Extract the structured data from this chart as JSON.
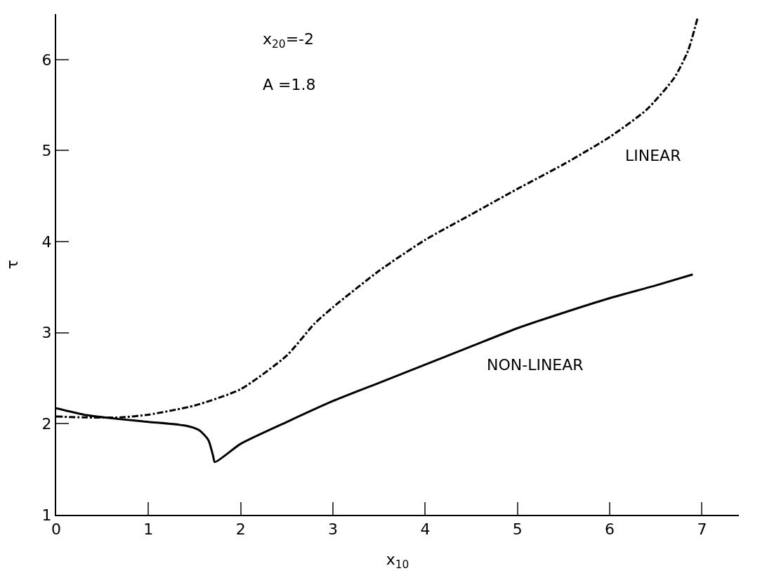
{
  "chart_data": {
    "type": "line",
    "xlabel": "x$_{10}$",
    "ylabel": "τ",
    "xlim": [
      0,
      7.4
    ],
    "xticks": [
      0,
      1,
      2,
      3,
      4,
      5,
      6,
      7
    ],
    "ylim": [
      1,
      6.5
    ],
    "yticks": [
      1,
      2,
      3,
      4,
      5,
      6
    ],
    "grid": false,
    "legend": false,
    "marker": "none",
    "series": [
      {
        "name": "LINEAR",
        "color": "#000000",
        "line_style": "dashed",
        "x": [
          0,
          0.3,
          0.7,
          1.0,
          1.5,
          2.0,
          2.5,
          2.8,
          3.0,
          3.5,
          4.0,
          4.5,
          5.0,
          5.5,
          6.0,
          6.4,
          6.7,
          6.85,
          6.95
        ],
        "values": [
          2.08,
          2.07,
          2.07,
          2.1,
          2.2,
          2.38,
          2.75,
          3.1,
          3.28,
          3.68,
          4.02,
          4.3,
          4.58,
          4.85,
          5.15,
          5.45,
          5.8,
          6.1,
          6.45
        ]
      },
      {
        "name": "NON-LINEAR",
        "color": "#000000",
        "line_style": "solid",
        "x": [
          0,
          0.3,
          0.7,
          1.0,
          1.4,
          1.55,
          1.65,
          1.7,
          1.72,
          2.0,
          2.5,
          3.0,
          3.5,
          4.0,
          4.5,
          5.0,
          5.5,
          6.0,
          6.5,
          6.9
        ],
        "values": [
          2.17,
          2.1,
          2.05,
          2.02,
          1.98,
          1.93,
          1.82,
          1.65,
          1.58,
          1.78,
          2.02,
          2.25,
          2.45,
          2.65,
          2.85,
          3.05,
          3.22,
          3.38,
          3.52,
          3.64
        ]
      }
    ],
    "annotations": [
      "x$_{20}$=-2",
      "A =1.8"
    ]
  }
}
